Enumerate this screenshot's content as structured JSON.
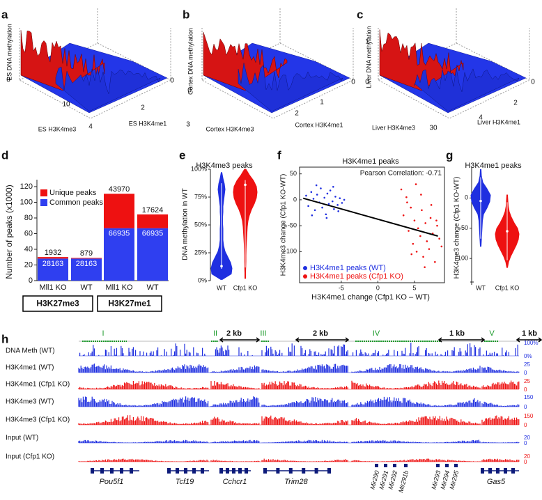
{
  "panel_labels": [
    "a",
    "b",
    "c",
    "d",
    "e",
    "f",
    "g",
    "h"
  ],
  "surface_panels": [
    {
      "z_label": "ES DNA methylation",
      "x_label": "ES H3K4me3",
      "y_label": "ES H3K4me1",
      "ticks": [
        "0",
        "10",
        "4",
        "2",
        "0"
      ]
    },
    {
      "z_label": "Cortex DNA methylation",
      "x_label": "Cortex H3K4me3",
      "y_label": "Cortex H3K4me1",
      "ticks": [
        "0",
        "3",
        "2",
        "1",
        "0"
      ]
    },
    {
      "z_label": "Liver DNA methylation",
      "x_label": "Liver H3K4me3",
      "y_label": "Liver H3K4me1",
      "ticks": [
        "1",
        "0",
        "30",
        "4",
        "2",
        "0"
      ]
    }
  ],
  "chart_data": [
    {
      "type": "bar",
      "y_label": "Number of peaks (x1000)",
      "categories": [
        "Mll1 KO",
        "WT",
        "Mll1 KO",
        "WT"
      ],
      "groups": [
        "H3K27me3",
        "H3K27me1"
      ],
      "series": [
        {
          "name": "Common peaks",
          "color": "#2f3ff0",
          "values": [
            28.163,
            28.163,
            66.935,
            66.935
          ],
          "value_labels": [
            "28163",
            "28163",
            "66935",
            "66935"
          ]
        },
        {
          "name": "Unique peaks",
          "color": "#ee1111",
          "values": [
            1.932,
            0.879,
            43.97,
            17.624
          ],
          "value_labels": [
            "1932",
            "879",
            "43970",
            "17624"
          ]
        }
      ],
      "ylim": [
        0,
        120
      ],
      "yticks": [
        0,
        20,
        40,
        60,
        80,
        100,
        120
      ],
      "legend": "upper left"
    },
    {
      "type": "violin",
      "title": "H3K4me3 peaks",
      "y_label": "DNA methylation in WT",
      "categories": [
        "WT",
        "Cfp1 KO"
      ],
      "colors": [
        "#1f2fe0",
        "#ee1111"
      ],
      "medians": [
        13,
        86
      ],
      "ylim": [
        0,
        100
      ],
      "yticks": [
        {
          "value": 0,
          "label": "0%"
        },
        {
          "value": 25,
          "label": "25%"
        },
        {
          "value": 50,
          "label": "50%"
        },
        {
          "value": 75,
          "label": "75%"
        },
        {
          "value": 100,
          "label": "100%"
        }
      ]
    },
    {
      "type": "scatter",
      "title": "H3K4me1 peaks",
      "annotation": "Pearson Correlation: -0.71",
      "x_label": "H3K4me1 change (Cfp1 KO – WT)",
      "y_label": "H3K4me3 change (Cfp1 KO-WT)",
      "xlim": [
        -10.7,
        9.1
      ],
      "ylim": [
        -160,
        63
      ],
      "xticks": [
        -5,
        0,
        5
      ],
      "yticks": [
        50,
        0,
        -50,
        -100
      ],
      "legend": "lower left",
      "series": [
        {
          "name": "H3K4me1  peaks (WT)",
          "color": "#1f2fe0",
          "x": [
            -9.8,
            -9.5,
            -9.1,
            -8.8,
            -8.6,
            -8.3,
            -8.0,
            -7.8,
            -7.6,
            -7.3,
            -7.1,
            -6.9,
            -6.7,
            -6.5,
            -6.2,
            -6.0,
            -5.8,
            -5.5,
            -5.2,
            -4.9,
            -4.6,
            -8.4,
            -7.0,
            -6.1,
            -5.4,
            -9.0
          ],
          "y": [
            8,
            -12,
            15,
            2,
            -20,
            10,
            -5,
            22,
            -15,
            4,
            -28,
            12,
            -8,
            18,
            -3,
            -18,
            6,
            -10,
            3,
            -6,
            0,
            28,
            -35,
            25,
            -22,
            -30
          ]
        },
        {
          "name": "H3K4me1  peaks (Cfp1 KO)",
          "color": "#ee1111",
          "x": [
            3.2,
            3.5,
            3.9,
            4.2,
            4.5,
            4.8,
            5.0,
            5.3,
            5.5,
            5.8,
            6.0,
            6.2,
            6.5,
            6.7,
            7.0,
            7.2,
            7.5,
            7.8,
            8.1,
            8.4,
            8.7,
            4.0,
            5.2,
            6.4,
            7.3,
            8.0,
            4.6,
            5.9
          ],
          "y": [
            20,
            -30,
            5,
            -60,
            -15,
            -85,
            -40,
            -100,
            -55,
            -70,
            -20,
            -110,
            -45,
            -80,
            -95,
            -35,
            -65,
            -120,
            -50,
            -75,
            -90,
            -5,
            30,
            -130,
            -10,
            -40,
            -105,
            10
          ]
        }
      ],
      "trend_line": {
        "x": [
          -10.2,
          8.2
        ],
        "y": [
          3,
          -70
        ]
      }
    },
    {
      "type": "violin",
      "title": "H3K4me1  peaks",
      "y_label": "H3K4me3 change (Cfp1 KO-WT)",
      "categories": [
        "WT",
        "Cfp1 KO"
      ],
      "colors": [
        "#1f2fe0",
        "#ee1111"
      ],
      "medians": [
        -5,
        -55
      ],
      "ylim": [
        -139,
        51
      ],
      "yticks": [
        0,
        -50,
        -100
      ]
    }
  ],
  "genome_browser": {
    "regions": [
      "I",
      "II",
      "III",
      "IV",
      "V"
    ],
    "scale_bars": [
      "2 kb",
      "2 kb",
      "1 kb",
      "1 kb"
    ],
    "tracks": [
      {
        "name": "DNA Meth (WT)",
        "scale": [
          "100%",
          "0%"
        ]
      },
      {
        "name": "H3K4me1 (WT)",
        "scale": [
          "25",
          "0"
        ]
      },
      {
        "name": "H3K4me1 (Cfp1 KO)",
        "scale": [
          "25",
          "0"
        ]
      },
      {
        "name": "H3K4me3 (WT)",
        "scale": [
          "150",
          "0"
        ]
      },
      {
        "name": "H3K4me3 (Cfp1 KO)",
        "scale": [
          "150",
          "0"
        ]
      },
      {
        "name": "Input (WT)",
        "scale": [
          "20",
          "0"
        ]
      },
      {
        "name": "Input (Cfp1 KO)",
        "scale": [
          "20",
          "0"
        ]
      }
    ],
    "genes": [
      "Pou5f1",
      "Tcf19",
      "Cchcr1",
      "Trim28",
      "Gas5"
    ],
    "mirnas": [
      "Mir290",
      "Mir291",
      "Mir292",
      "Mir291b",
      "Mir293",
      "Mir294",
      "Mir295"
    ]
  }
}
